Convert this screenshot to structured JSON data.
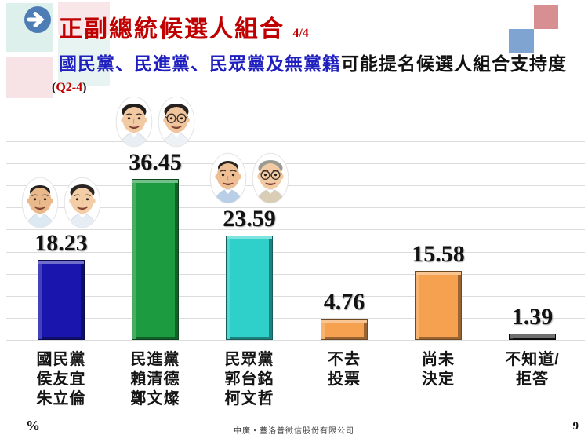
{
  "header": {
    "title": "正副總統候選人組合",
    "title_suffix": "4/4",
    "subtitle_blue": "國民黨、民進黨、民眾黨及無黨籍",
    "subtitle_black": "可能提名候選人組合支持度",
    "question_prefix": "(",
    "question_code": "Q2-4",
    "question_suffix": ")",
    "colors": {
      "title_red": "#c00000",
      "subtitle_blue": "#1f1fc0",
      "question_red": "#c00000",
      "arrow_circle_blue": "#4e7cb5"
    }
  },
  "decor": {
    "top_left_blocks": [
      "pale-cyan",
      "pale-pink",
      "pale-pink",
      "pale-cyan"
    ],
    "top_right_blocks": [
      "dusty-rose-square",
      "steel-blue-square"
    ],
    "colors": {
      "pale_cyan_1": "#def0ec",
      "pale_pink_1": "#f7e2e5",
      "pale_pink_2": "#f8e6e8",
      "pale_cyan_2": "#e7f4f1",
      "dusty_rose": "#d88f92",
      "steel_blue": "#80a4d2"
    }
  },
  "chart_data": {
    "type": "bar",
    "title": "國民黨、民進黨、民眾黨及無黨籍可能提名候選人組合支持度",
    "question": "Q2-4",
    "unit_label": "%",
    "ylim": [
      0,
      45
    ],
    "grid_step": 5,
    "grid": true,
    "legend": "none",
    "categories": [
      "國民黨 侯友宜 朱立倫",
      "民進黨 賴清德 鄭文燦",
      "民眾黨 郭台銘 柯文哲",
      "不去投票",
      "尚未決定",
      "不知道/拒答"
    ],
    "values": [
      18.23,
      36.45,
      23.59,
      4.76,
      15.58,
      1.39
    ],
    "items": [
      {
        "label_lines": [
          "國民黨",
          "侯友宜",
          "朱立倫"
        ],
        "value": 18.23,
        "color": "#1a16ad",
        "avatars": [
          {
            "name": "侯友宜",
            "hair": "receding",
            "hair_color": "#26211d",
            "skin": "#e9b98c",
            "glasses": false,
            "shirt": "#dce8f2"
          },
          {
            "name": "朱立倫",
            "hair": "full",
            "hair_color": "#2a2522",
            "skin": "#f3cda6",
            "glasses": false,
            "shirt": "#e6edf5"
          }
        ]
      },
      {
        "label_lines": [
          "民進黨",
          "賴清德",
          "鄭文燦"
        ],
        "value": 36.45,
        "color": "#1d9b40",
        "avatars": [
          {
            "name": "賴清德",
            "hair": "full",
            "hair_color": "#221e1b",
            "skin": "#f1c9a2",
            "glasses": false,
            "shirt": "#e9eef4"
          },
          {
            "name": "鄭文燦",
            "hair": "full",
            "hair_color": "#26211e",
            "skin": "#f0c49c",
            "glasses": true,
            "shirt": "#eef1f5"
          }
        ]
      },
      {
        "label_lines": [
          "民眾黨",
          "郭台銘",
          "柯文哲"
        ],
        "value": 23.59,
        "color": "#2fd0ca",
        "avatars": [
          {
            "name": "郭台銘",
            "hair": "receding",
            "hair_color": "#2b2521",
            "skin": "#eebf95",
            "glasses": false,
            "shirt": "#b9cfe8"
          },
          {
            "name": "柯文哲",
            "hair": "full",
            "hair_color": "#9a9a94",
            "skin": "#f2cba4",
            "glasses": true,
            "shirt": "#d9cdb6"
          }
        ]
      },
      {
        "label_lines": [
          "不去",
          "投票"
        ],
        "value": 4.76,
        "color": "#f6a14f",
        "avatars": []
      },
      {
        "label_lines": [
          "尚未",
          "決定"
        ],
        "value": 15.58,
        "color": "#f6a14f",
        "avatars": []
      },
      {
        "label_lines": [
          "不知道/",
          "拒答"
        ],
        "value": 1.39,
        "color": "#161616",
        "avatars": []
      }
    ]
  },
  "footer": {
    "source": "中廣‧蓋洛普徵信股份有限公司",
    "page_number": "9"
  }
}
